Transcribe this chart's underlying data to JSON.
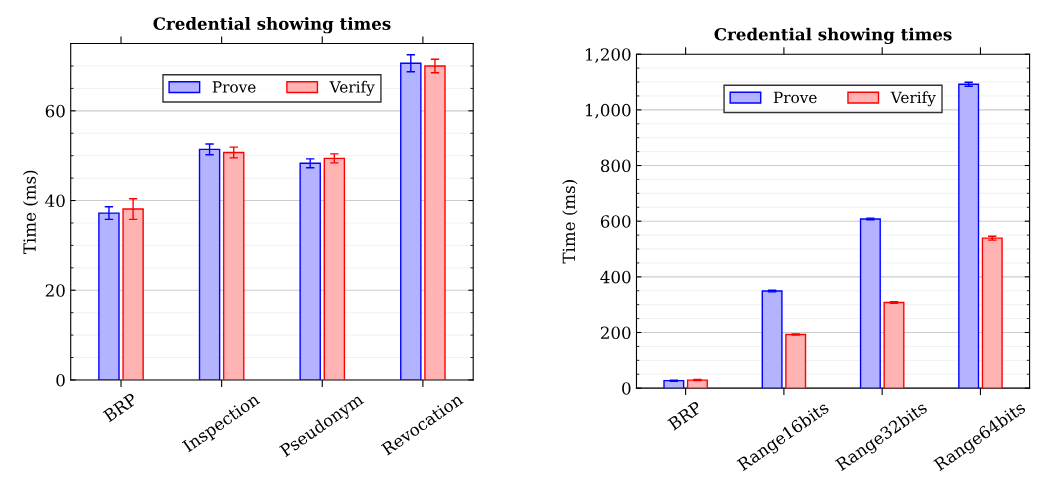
{
  "chart_data": [
    {
      "type": "bar",
      "title": "Credential showing times",
      "ylabel": "Time (ms)",
      "categories": [
        "BRP",
        "Inspection",
        "Pseudonym",
        "Revocation"
      ],
      "ylim": [
        0,
        75
      ],
      "yticks": [
        0,
        20,
        40,
        60
      ],
      "grid": "y",
      "legend": "top",
      "series": [
        {
          "name": "Prove",
          "color": "#b3b3ff",
          "values": [
            37.2,
            51.4,
            48.3,
            70.6
          ],
          "errors": [
            1.4,
            1.2,
            1.0,
            1.9
          ]
        },
        {
          "name": "Verify",
          "color": "#ffb3b3",
          "values": [
            38.1,
            50.7,
            49.4,
            70.0
          ],
          "errors": [
            2.3,
            1.2,
            1.0,
            1.5
          ]
        }
      ]
    },
    {
      "type": "bar",
      "title": "Credential showing times",
      "ylabel": "Time (ms)",
      "categories": [
        "BRP",
        "Range16bits",
        "Range32bits",
        "Range64bits"
      ],
      "ylim": [
        0,
        1200
      ],
      "yticks": [
        0,
        200,
        400,
        600,
        800,
        {
          "value": 1000,
          "label": "1,000"
        },
        {
          "value": 1200,
          "label": "1,200"
        }
      ],
      "grid": "y",
      "legend": "top",
      "series": [
        {
          "name": "Prove",
          "color": "#b3b3ff",
          "values": [
            27,
            349,
            608,
            1092
          ],
          "errors": [
            2,
            3,
            3,
            7
          ]
        },
        {
          "name": "Verify",
          "color": "#ffb3b3",
          "values": [
            29,
            193,
            308,
            539
          ],
          "errors": [
            2,
            2,
            3,
            7
          ]
        }
      ]
    }
  ]
}
